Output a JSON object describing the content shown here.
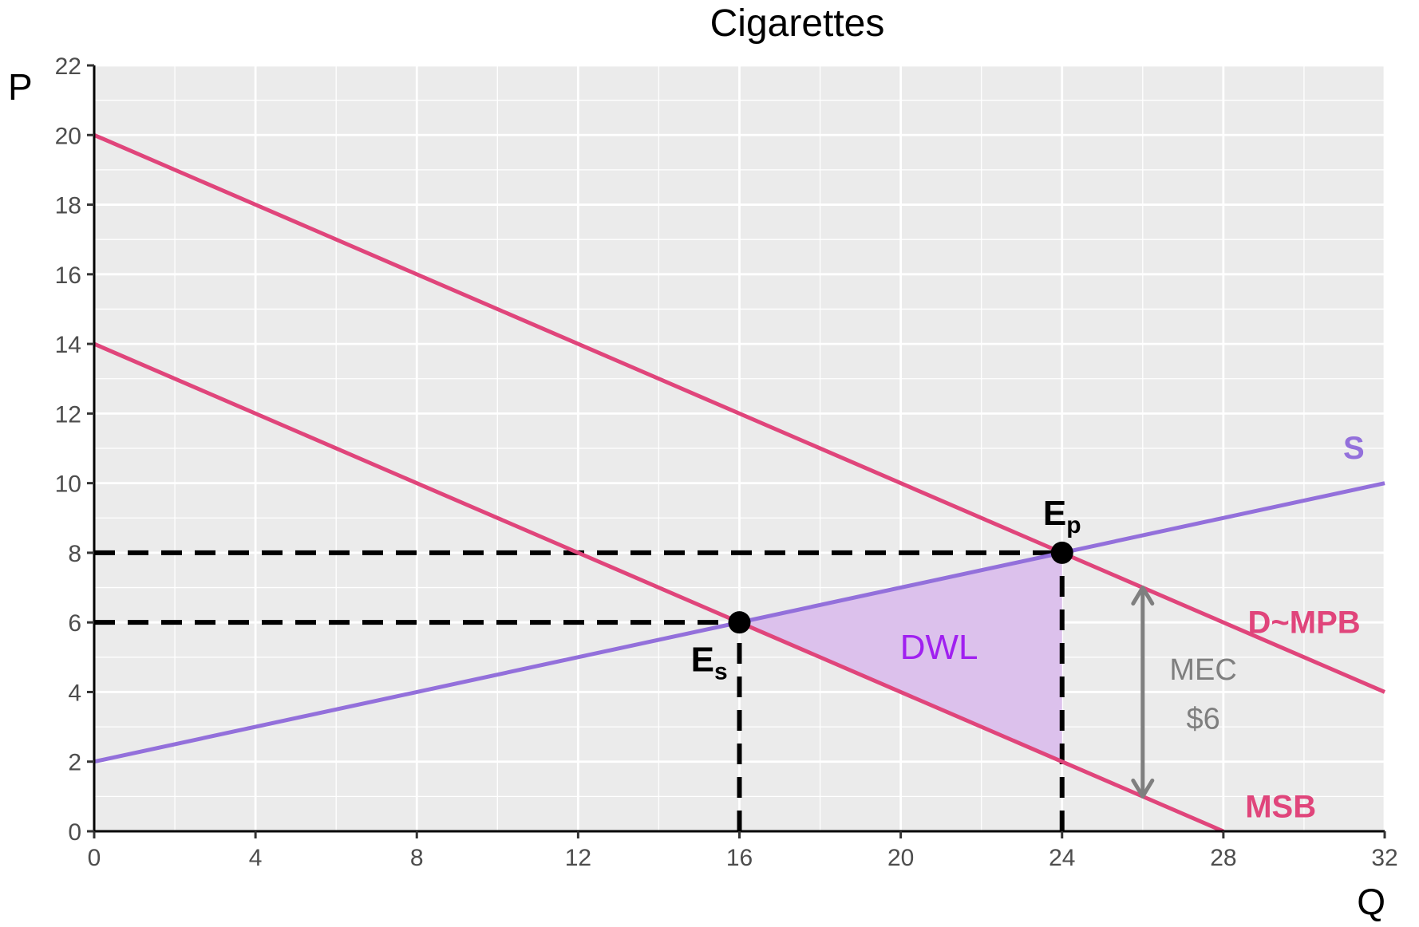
{
  "chart_data": {
    "type": "line",
    "title": "Cigarettes",
    "xlabel": "Q",
    "ylabel": "P",
    "xlim": [
      0,
      32
    ],
    "ylim": [
      0,
      22
    ],
    "x_ticks": [
      "0",
      "4",
      "8",
      "12",
      "16",
      "20",
      "24",
      "28",
      "32"
    ],
    "y_ticks": [
      "0",
      "2",
      "4",
      "6",
      "8",
      "10",
      "12",
      "14",
      "16",
      "18",
      "20",
      "22"
    ],
    "grid": true,
    "series": [
      {
        "name": "S",
        "color": "#9370DB",
        "points": [
          [
            0,
            2
          ],
          [
            32,
            10
          ]
        ]
      },
      {
        "name": "D~MPB",
        "color": "#E0457B",
        "points": [
          [
            0,
            20
          ],
          [
            32,
            4
          ]
        ]
      },
      {
        "name": "MSB",
        "color": "#E0457B",
        "points": [
          [
            0,
            14
          ],
          [
            28,
            0
          ]
        ]
      }
    ],
    "points": [
      {
        "label": "E",
        "subscript": "p",
        "x": 24,
        "y": 8
      },
      {
        "label": "E",
        "subscript": "s",
        "x": 16,
        "y": 6
      }
    ],
    "dwl": {
      "label": "DWL",
      "color": "#A020F0",
      "vertices": [
        [
          16,
          6
        ],
        [
          24,
          8
        ],
        [
          24,
          2
        ]
      ]
    },
    "mec": {
      "label": "MEC",
      "value": "$6",
      "x": 26,
      "y_from": 1,
      "y_to": 7,
      "color": "#7f7f7f"
    },
    "reference_lines": [
      {
        "y": 8,
        "x_from": 0,
        "x_to": 24
      },
      {
        "y": 6,
        "x_from": 0,
        "x_to": 16
      },
      {
        "x": 16,
        "y_from": 0,
        "y_to": 6
      },
      {
        "x": 24,
        "y_from": 0,
        "y_to": 8
      }
    ]
  }
}
